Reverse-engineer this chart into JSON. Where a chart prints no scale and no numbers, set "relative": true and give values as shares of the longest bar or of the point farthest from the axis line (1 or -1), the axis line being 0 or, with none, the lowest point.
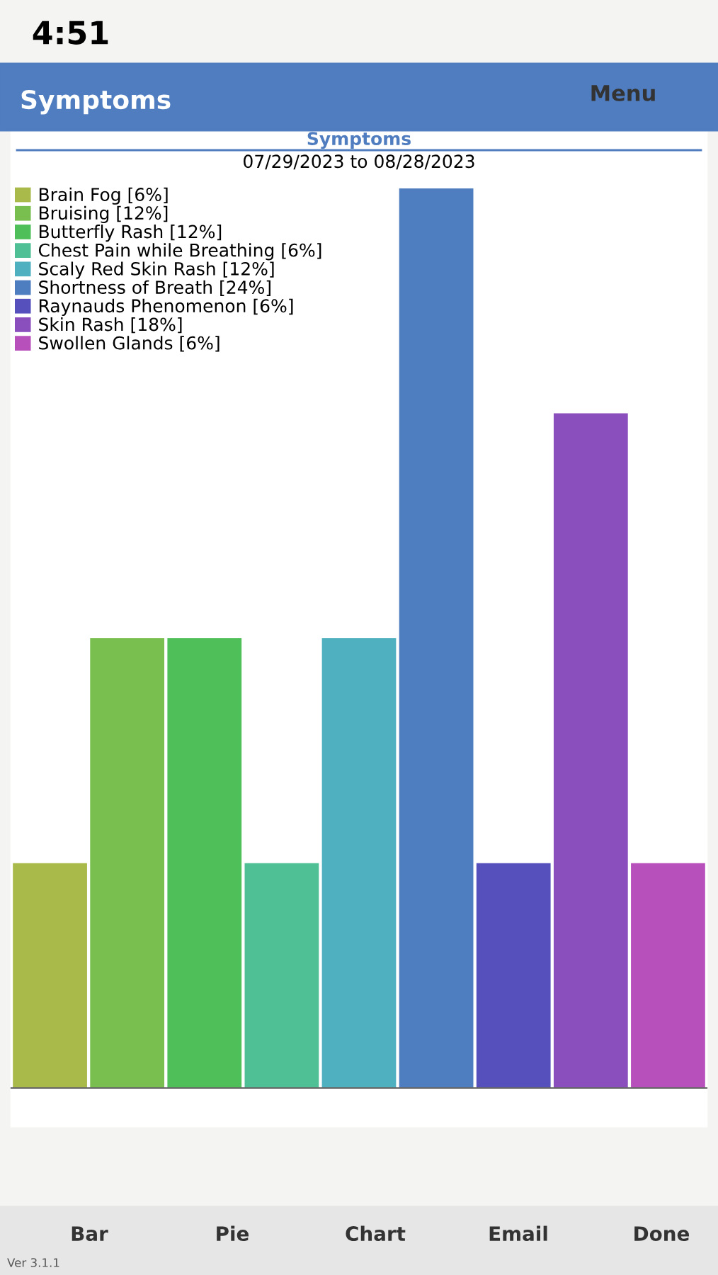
{
  "chart_data": {
    "type": "bar",
    "title": "Symptoms",
    "subtitle": "07/29/2023 to 08/28/2023",
    "relative": true,
    "stacked": true,
    "categories": [
      null,
      null,
      null,
      null,
      null,
      null,
      null,
      null,
      null
    ],
    "series": [
      {
        "name": "Brain Fog [6%]",
        "color": "#a9b94a",
        "values": [
          0.25,
          0,
          0,
          0,
          0,
          0,
          0,
          0,
          0
        ]
      },
      {
        "name": "Bruising [12%]",
        "color": "#78bf50",
        "values": [
          0,
          0.5,
          0,
          0,
          0,
          0,
          0,
          0,
          0
        ]
      },
      {
        "name": "Butterfly Rash [12%]",
        "color": "#4fbf5a",
        "values": [
          0,
          0,
          0.5,
          0,
          0,
          0,
          0,
          0,
          0
        ]
      },
      {
        "name": "Chest Pain while Breathing [6%]",
        "color": "#4fbf95",
        "values": [
          0,
          0,
          0,
          0.25,
          0,
          0,
          0,
          0,
          0
        ]
      },
      {
        "name": "Scaly Red Skin Rash [12%]",
        "color": "#4fb0c0",
        "values": [
          0,
          0,
          0,
          0,
          0.5,
          0,
          0,
          0,
          0
        ]
      },
      {
        "name": "Shortness of Breath [24%]",
        "color": "#4f7ec0",
        "values": [
          0,
          0,
          0,
          0,
          0,
          1,
          0,
          0,
          0
        ]
      },
      {
        "name": "Raynauds Phenomenon [6%]",
        "color": "#5550bc",
        "values": [
          0,
          0,
          0,
          0,
          0,
          0,
          0.25,
          0,
          0
        ]
      },
      {
        "name": "Skin Rash [18%]",
        "color": "#8a4fbc",
        "values": [
          0,
          0,
          0,
          0,
          0,
          0,
          0,
          0.75,
          0
        ]
      },
      {
        "name": "Swollen Glands [6%]",
        "color": "#b850bc",
        "values": [
          0,
          0,
          0,
          0,
          0,
          0,
          0,
          0,
          0.25
        ]
      }
    ],
    "legend": "top left",
    "annotations": [
      "4:51",
      "Symptoms",
      "Menu",
      "Bar",
      "Pie",
      "Chart",
      "Email",
      "Done",
      "Ver 3.1.1"
    ]
  }
}
